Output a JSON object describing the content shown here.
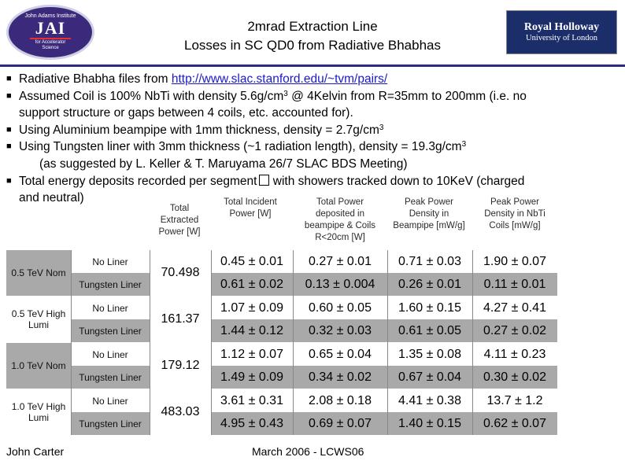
{
  "logos": {
    "jai": {
      "line1": "John Adams Institute",
      "main": "JAI",
      "line3": "for Accelerator",
      "line4": "Science"
    },
    "royal_holloway": {
      "line1": "Royal Holloway",
      "line2": "University of London"
    }
  },
  "title": {
    "line1": "2mrad Extraction Line",
    "line2": "Losses in SC QD0 from Radiative Bhabhas"
  },
  "bullets": {
    "b1_text": "Radiative Bhabha files from ",
    "b1_link": "http://www.slac.stanford.edu/~tvm/pairs/",
    "b2_a": "Assumed Coil is 100% NbTi with density 5.6g/cm",
    "b2_sup": "3",
    "b2_b": " @ 4Kelvin from R=35mm to 200mm (i.e. no",
    "b2_c": "support structure or gaps between 4 coils, etc. accounted for).",
    "b3_a": "Using Aluminium beampipe with 1mm thickness, density = 2.7g/cm",
    "b3_sup": "3",
    "b4_a": "Using Tungsten liner with 3mm thickness (~1 radiation length), density = 19.3g/cm",
    "b4_sup": "3",
    "b4_sub": "(as suggested by L. Keller & T. Maruyama 26/7 SLAC BDS Meeting)",
    "b5_a": "Total energy deposits recorded per segment",
    "b5_b": " with showers tracked down to 10KeV (charged",
    "b5_c": "and neutral)"
  },
  "table": {
    "headers": {
      "total": "Total Extracted Power [W]",
      "incident": "Total Incident Power [W]",
      "deposited": "Total Power deposited in beampipe & Coils R<20cm [W]",
      "peak_beampipe": "Peak Power Density in Beampipe [mW/g]",
      "peak_coils": "Peak Power Density in NbTi Coils [mW/g]"
    },
    "liner_labels": {
      "none": "No Liner",
      "tungsten": "Tungsten Liner"
    },
    "groups": [
      {
        "label": "0.5 TeV Nom",
        "total": "70.498",
        "no_liner": [
          "0.45 ± 0.01",
          "0.27 ± 0.01",
          "0.71 ± 0.03",
          "1.90 ± 0.07"
        ],
        "tungsten": [
          "0.61 ± 0.02",
          "0.13 ± 0.004",
          "0.26 ± 0.01",
          "0.11 ± 0.01"
        ]
      },
      {
        "label": "0.5 TeV High Lumi",
        "total": "161.37",
        "no_liner": [
          "1.07 ± 0.09",
          "0.60 ± 0.05",
          "1.60 ± 0.15",
          "4.27 ± 0.41"
        ],
        "tungsten": [
          "1.44 ± 0.12",
          "0.32 ± 0.03",
          "0.61 ± 0.05",
          "0.27 ± 0.02"
        ]
      },
      {
        "label": "1.0 TeV Nom",
        "total": "179.12",
        "no_liner": [
          "1.12 ± 0.07",
          "0.65 ± 0.04",
          "1.35 ± 0.08",
          "4.11 ± 0.23"
        ],
        "tungsten": [
          "1.49 ± 0.09",
          "0.34 ± 0.02",
          "0.67 ± 0.04",
          "0.30 ± 0.02"
        ]
      },
      {
        "label": "1.0 TeV High Lumi",
        "total": "483.03",
        "no_liner": [
          "3.61 ± 0.31",
          "2.08 ± 0.18",
          "4.41 ± 0.38",
          "13.7 ± 1.2"
        ],
        "tungsten": [
          "4.95 ± 0.43",
          "0.69 ± 0.07",
          "1.40 ± 0.15",
          "0.62 ± 0.07"
        ]
      }
    ]
  },
  "footer": {
    "author": "John Carter",
    "event": "March 2006 - LCWS06"
  }
}
